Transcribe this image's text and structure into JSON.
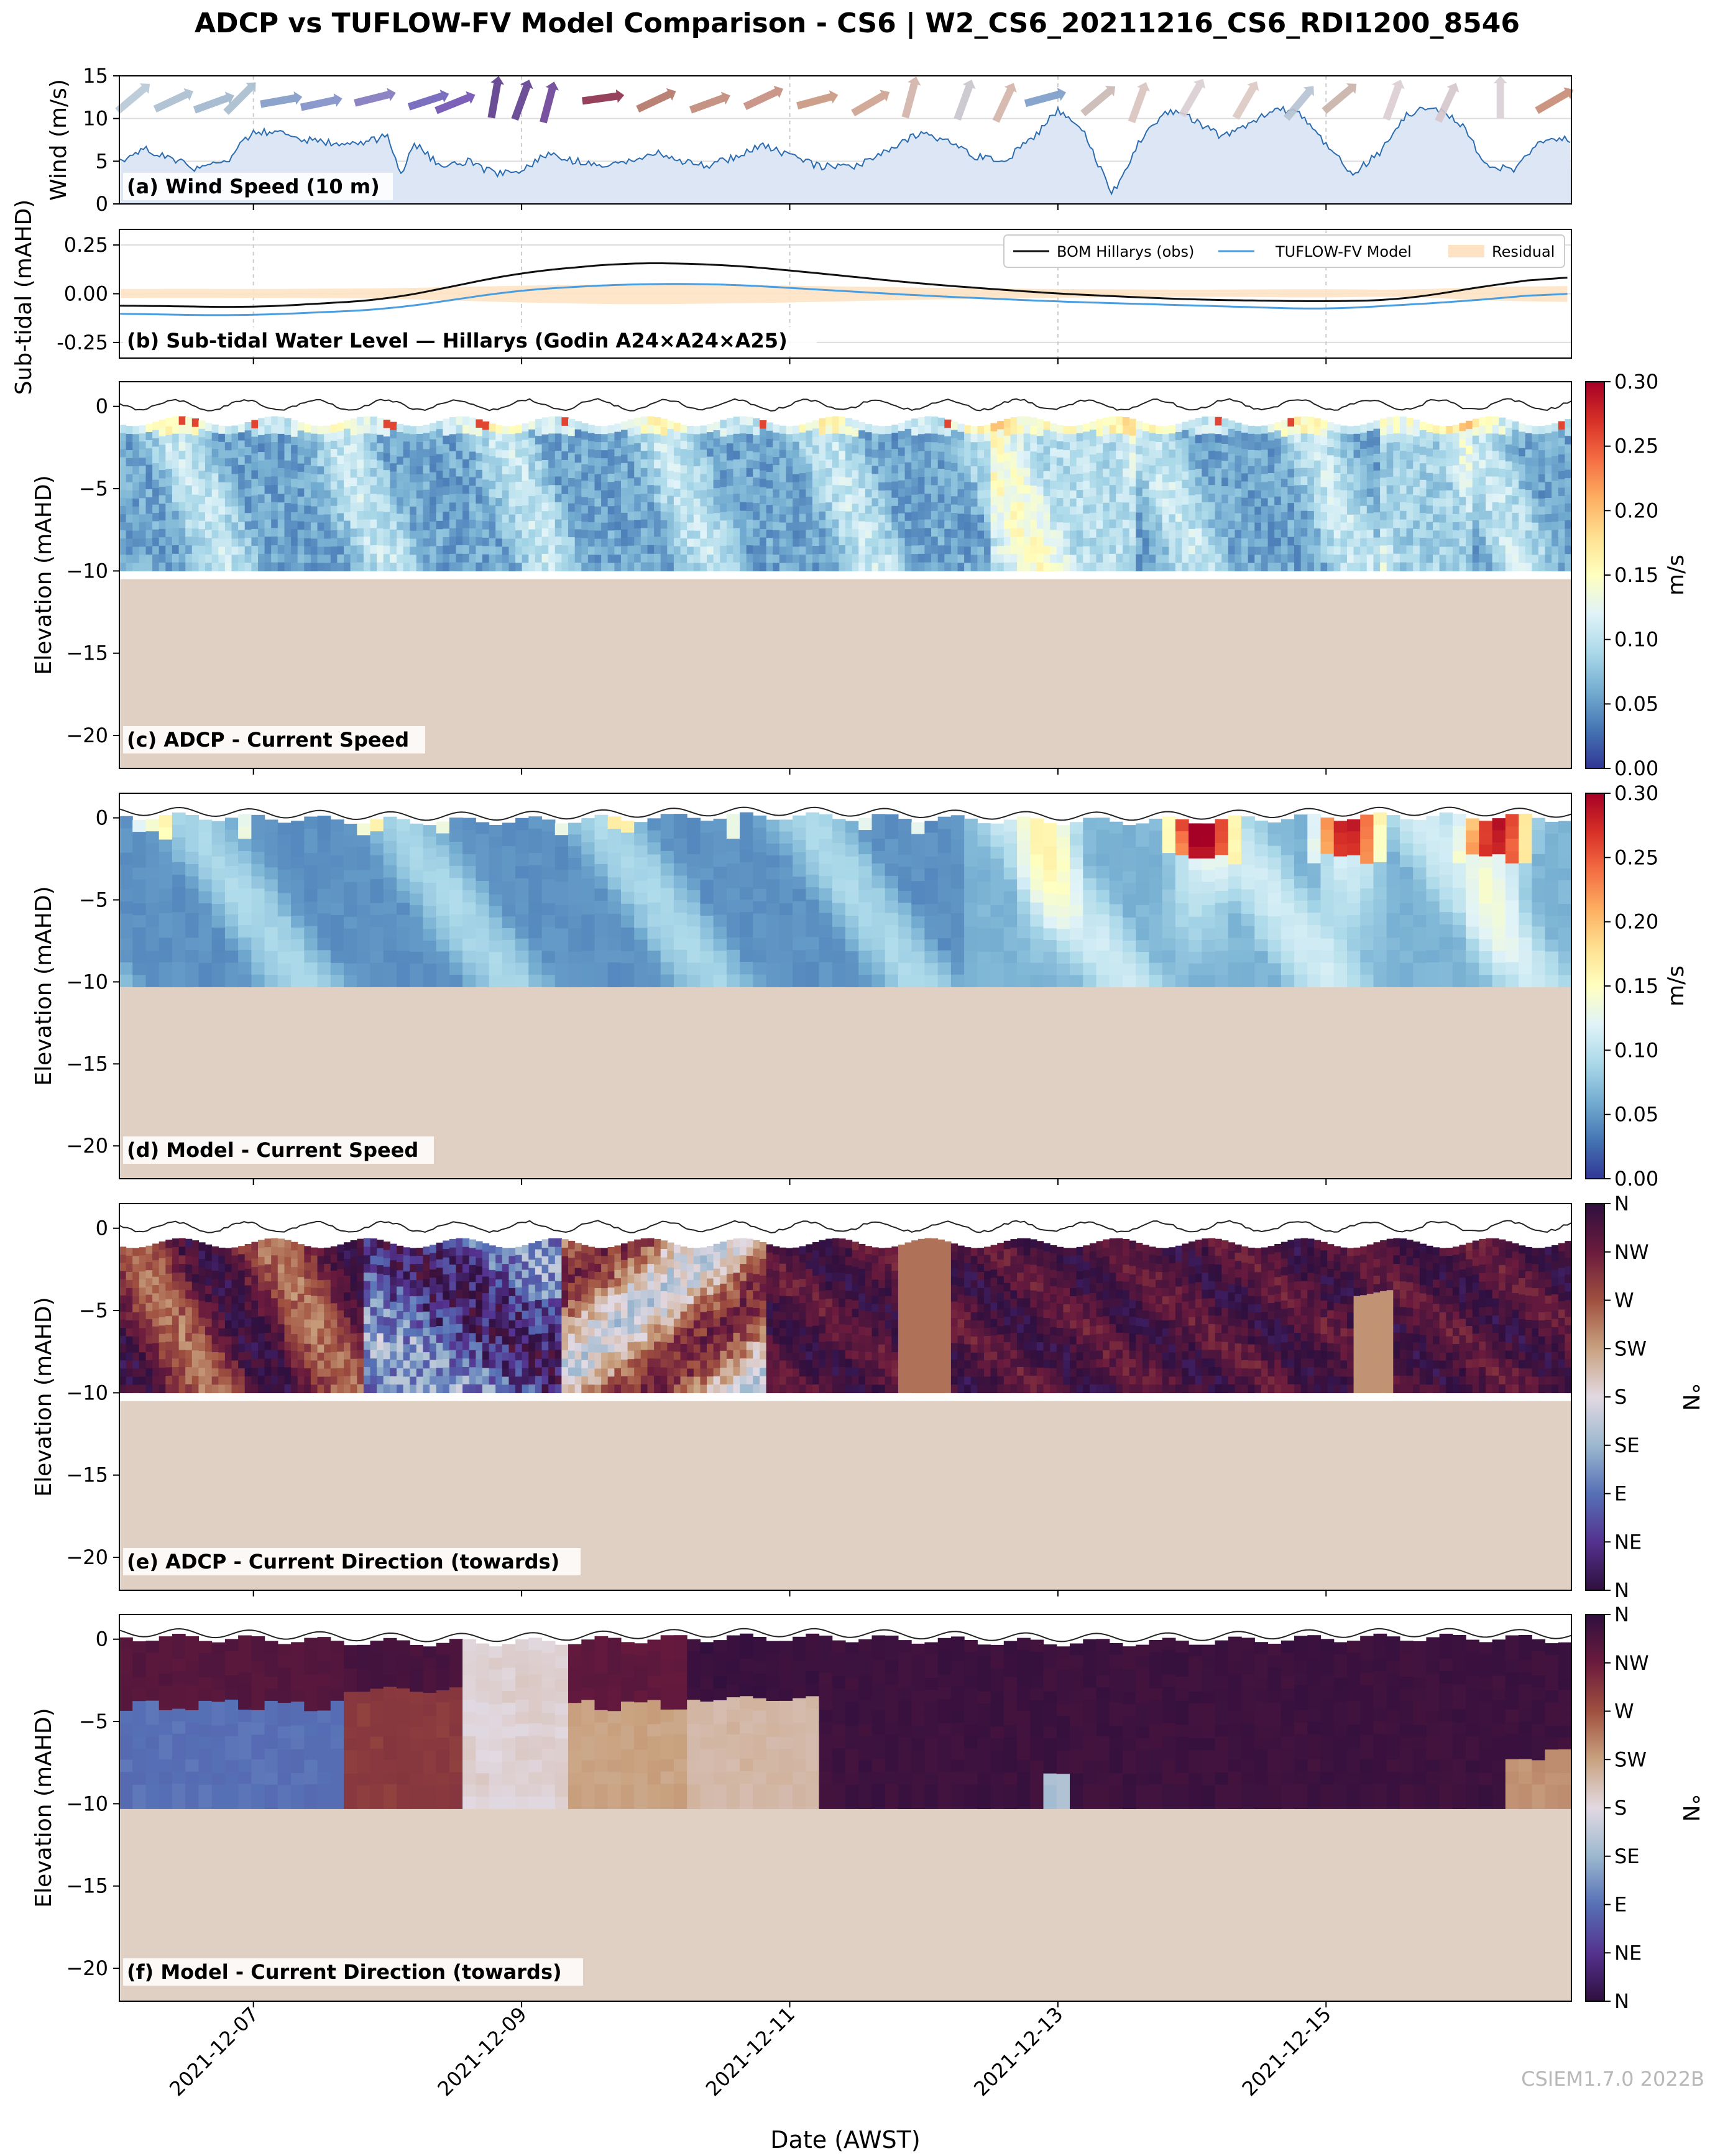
{
  "title": "ADCP vs TUFLOW-FV Model Comparison - CS6 | W2_CS6_20211216_CS6_RDI1200_8546",
  "xlabel": "Date (AWST)",
  "watermark": "CSIEM1.7.0 2022B",
  "colors": {
    "speed_scale": [
      "#313695",
      "#4575b4",
      "#74add1",
      "#abd9e9",
      "#e0f3f8",
      "#ffffbf",
      "#fee090",
      "#fdae61",
      "#f46d43",
      "#d73027",
      "#a50026"
    ],
    "direction_scale": [
      "#2f0f3e",
      "#54328f",
      "#5670b6",
      "#9cb8cf",
      "#e2d9e2",
      "#c9a280",
      "#a0503f",
      "#6b1b3d",
      "#2f0f3e"
    ],
    "seabed": "#e0cfc3",
    "wind_fill": "#dce6f4",
    "wind_line": "#2b6cb0",
    "obs_line": "#111111",
    "model_line": "#4a9ee0",
    "residual_fill": "#fde3c3"
  },
  "chart_data": [
    {
      "type": "area",
      "panel_label": "(a) Wind Speed (10 m)",
      "ylabel": "Wind (m/s)",
      "ylim": [
        0,
        15
      ],
      "yticks": [
        0,
        5,
        10,
        15
      ],
      "x_range": [
        "2021-12-06",
        "2021-12-16T20:00"
      ],
      "x_ticks": [
        "2021-12-07",
        "2021-12-09",
        "2021-12-11",
        "2021-12-13",
        "2021-12-15"
      ],
      "x": [
        6.0,
        6.2,
        6.4,
        6.6,
        6.8,
        7.0,
        7.2,
        7.4,
        7.6,
        7.8,
        8.0,
        8.1,
        8.2,
        8.4,
        8.6,
        8.8,
        9.0,
        9.2,
        9.4,
        9.6,
        9.8,
        10.0,
        10.2,
        10.4,
        10.6,
        10.8,
        11.0,
        11.2,
        11.4,
        11.6,
        11.8,
        12.0,
        12.2,
        12.4,
        12.6,
        12.8,
        13.0,
        13.2,
        13.4,
        13.6,
        13.8,
        14.0,
        14.2,
        14.4,
        14.6,
        14.8,
        15.0,
        15.2,
        15.4,
        15.6,
        15.8,
        16.0,
        16.2,
        16.4,
        16.6,
        16.83
      ],
      "values": [
        5,
        6.5,
        5.2,
        4,
        5,
        8.5,
        8.2,
        7.5,
        7,
        7,
        8,
        3.5,
        7,
        4.5,
        5,
        3.5,
        4,
        6,
        5,
        4.5,
        5,
        6,
        5,
        4.5,
        5.5,
        7,
        5.5,
        4.5,
        4.2,
        5,
        7,
        8.5,
        7,
        5.5,
        5,
        7.5,
        11,
        8.5,
        1,
        7,
        11,
        10,
        8,
        9,
        11.2,
        10.8,
        7,
        3.5,
        6,
        10.5,
        11.5,
        9.5,
        4.5,
        4,
        7.5,
        7.5
      ],
      "wind_direction": "shown by arrows"
    },
    {
      "type": "line",
      "panel_label": "(b) Sub-tidal Water Level — Hillarys (Godin A24×A24×A25)",
      "ylabel": "Sub-tidal (mAHD)",
      "ylim": [
        -0.33,
        0.33
      ],
      "yticks": [
        -0.25,
        0.0,
        0.25
      ],
      "legend": "top-right",
      "series": [
        {
          "name": "BOM Hillarys (obs)",
          "x": [
            6,
            7,
            8,
            9,
            9.8,
            10.5,
            11,
            12,
            13,
            14,
            15,
            15.6,
            16,
            16.83
          ],
          "values": [
            -0.06,
            -0.07,
            -0.03,
            0.11,
            0.16,
            0.15,
            0.12,
            0.05,
            0.0,
            -0.03,
            -0.04,
            -0.03,
            0.02,
            0.1
          ]
        },
        {
          "name": "TUFLOW-FV Model",
          "x": [
            6,
            6.5,
            7,
            8,
            9,
            9.8,
            10.5,
            11,
            12,
            13,
            14,
            15,
            16,
            16.83
          ],
          "values": [
            -0.1,
            -0.11,
            -0.11,
            -0.08,
            0.02,
            0.05,
            0.05,
            0.03,
            -0.01,
            -0.04,
            -0.06,
            -0.08,
            -0.04,
            0.01
          ]
        },
        {
          "name": "Residual",
          "type": "area"
        }
      ]
    },
    {
      "type": "heatmap",
      "panel_label": "(c) ADCP - Current Speed",
      "ylabel": "Elevation (mAHD)",
      "ylim": [
        -22,
        1.5
      ],
      "yticks": [
        0,
        -5,
        -10,
        -15,
        -20
      ],
      "colorbar": {
        "label": "m/s",
        "min": 0.0,
        "max": 0.3,
        "ticks": [
          "0.00",
          "0.05",
          "0.10",
          "0.15",
          "0.20",
          "0.25",
          "0.30"
        ]
      },
      "data_bottom": -10,
      "seabed": -10.5
    },
    {
      "type": "heatmap",
      "panel_label": "(d) Model - Current Speed",
      "ylabel": "Elevation (mAHD)",
      "ylim": [
        -22,
        1.5
      ],
      "yticks": [
        0,
        -5,
        -10,
        -15,
        -20
      ],
      "colorbar": {
        "label": "m/s",
        "min": 0.0,
        "max": 0.3,
        "ticks": [
          "0.00",
          "0.05",
          "0.10",
          "0.15",
          "0.20",
          "0.25",
          "0.30"
        ]
      },
      "data_bottom": -10.3,
      "seabed": -10.3
    },
    {
      "type": "heatmap",
      "panel_label": "(e) ADCP - Current Direction (towards)",
      "ylabel": "Elevation (mAHD)",
      "ylim": [
        -22,
        1.5
      ],
      "yticks": [
        0,
        -5,
        -10,
        -15,
        -20
      ],
      "colorbar": {
        "label": "°N",
        "ticks": [
          "N",
          "NE",
          "E",
          "SE",
          "S",
          "SW",
          "W",
          "NW",
          "N"
        ]
      },
      "data_bottom": -10,
      "seabed": -10.5
    },
    {
      "type": "heatmap",
      "panel_label": "(f) Model - Current Direction (towards)",
      "ylabel": "Elevation (mAHD)",
      "ylim": [
        -22,
        1.5
      ],
      "yticks": [
        0,
        -5,
        -10,
        -15,
        -20
      ],
      "colorbar": {
        "label": "°N",
        "ticks": [
          "N",
          "NE",
          "E",
          "SE",
          "S",
          "SW",
          "W",
          "NW",
          "N"
        ]
      },
      "data_bottom": -10.3,
      "seabed": -10.3
    }
  ]
}
